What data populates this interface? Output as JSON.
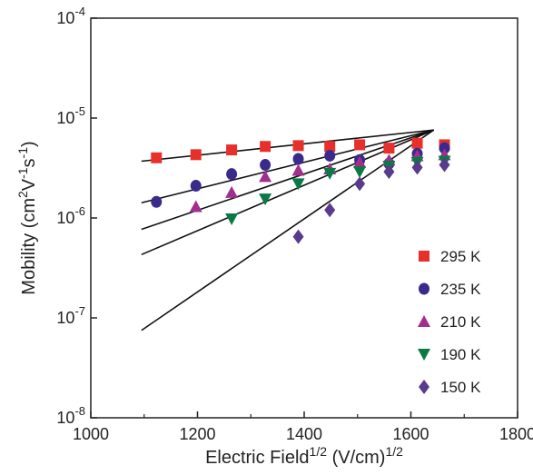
{
  "chart_data": {
    "type": "scatter",
    "x_scale": "linear",
    "y_scale": "log",
    "xlim": [
      1000,
      1800
    ],
    "ylim": [
      1e-08,
      0.0001
    ],
    "x_ticks": [
      1000,
      1200,
      1400,
      1600,
      1800
    ],
    "x_tick_labels": [
      "1000",
      "1200",
      "1400",
      "1600",
      "1800"
    ],
    "y_ticks": [
      1e-08,
      1e-07,
      1e-06,
      1e-05,
      0.0001
    ],
    "y_tick_bases": [
      "10",
      "10",
      "10",
      "10",
      "10"
    ],
    "y_tick_exponents": [
      "-8",
      "-7",
      "-6",
      "-5",
      "-4"
    ],
    "xlabel": {
      "main": "Electric Field",
      "sup1": "1/2",
      "units": " (V/cm)",
      "sup2": "1/2"
    },
    "ylabel": {
      "main": "Mobility (cm",
      "sup1": "2",
      "mid1": "V",
      "sup2": "-1",
      "mid2": "s",
      "sup3": "-1",
      "end": ")"
    },
    "legend_position": "right",
    "series": [
      {
        "name": "295 K",
        "marker": "square",
        "color": "#e8302a",
        "x": [
          1123,
          1197,
          1264,
          1327,
          1389,
          1448,
          1504,
          1559,
          1612,
          1663
        ],
        "y": [
          4e-06,
          4.3e-06,
          4.8e-06,
          5.2e-06,
          5.3e-06,
          5.2e-06,
          5.4e-06,
          5e-06,
          5.6e-06,
          5.4e-06
        ],
        "fit": {
          "x": [
            1095,
            1643
          ],
          "y": [
            3.7e-06,
            7.6e-06
          ]
        }
      },
      {
        "name": "235 K",
        "marker": "circle",
        "color": "#3a2a8c",
        "x": [
          1123,
          1197,
          1264,
          1327,
          1389,
          1448,
          1504,
          1559,
          1612,
          1663
        ],
        "y": [
          1.45e-06,
          2.1e-06,
          2.75e-06,
          3.4e-06,
          3.9e-06,
          4.2e-06,
          3.8e-06,
          3.5e-06,
          4.4e-06,
          5e-06
        ],
        "fit": {
          "x": [
            1095,
            1643
          ],
          "y": [
            1.42e-06,
            7.6e-06
          ]
        }
      },
      {
        "name": "210 K",
        "marker": "triangle-up",
        "color": "#a0308c",
        "x": [
          1197,
          1264,
          1327,
          1389,
          1448,
          1504,
          1559,
          1612,
          1663
        ],
        "y": [
          1.3e-06,
          1.8e-06,
          2.6e-06,
          3e-06,
          3.1e-06,
          3.6e-06,
          3.8e-06,
          4.2e-06,
          4.3e-06
        ],
        "fit": {
          "x": [
            1095,
            1643
          ],
          "y": [
            7.7e-07,
            7.6e-06
          ]
        }
      },
      {
        "name": "190 K",
        "marker": "triangle-down",
        "color": "#0a7a45",
        "x": [
          1264,
          1327,
          1389,
          1448,
          1504,
          1559,
          1612,
          1663
        ],
        "y": [
          9.8e-07,
          1.55e-06,
          2.2e-06,
          2.8e-06,
          2.9e-06,
          3.3e-06,
          3.6e-06,
          3.7e-06
        ],
        "fit": {
          "x": [
            1095,
            1643
          ],
          "y": [
            4.3e-07,
            7.6e-06
          ]
        }
      },
      {
        "name": "150 K",
        "marker": "diamond",
        "color": "#5a3a8c",
        "x": [
          1389,
          1448,
          1504,
          1559,
          1612,
          1663
        ],
        "y": [
          6.5e-07,
          1.2e-06,
          2.2e-06,
          2.9e-06,
          3.2e-06,
          3.4e-06
        ],
        "fit": {
          "x": [
            1095,
            1643
          ],
          "y": [
            7.5e-08,
            7.6e-06
          ]
        }
      }
    ]
  }
}
